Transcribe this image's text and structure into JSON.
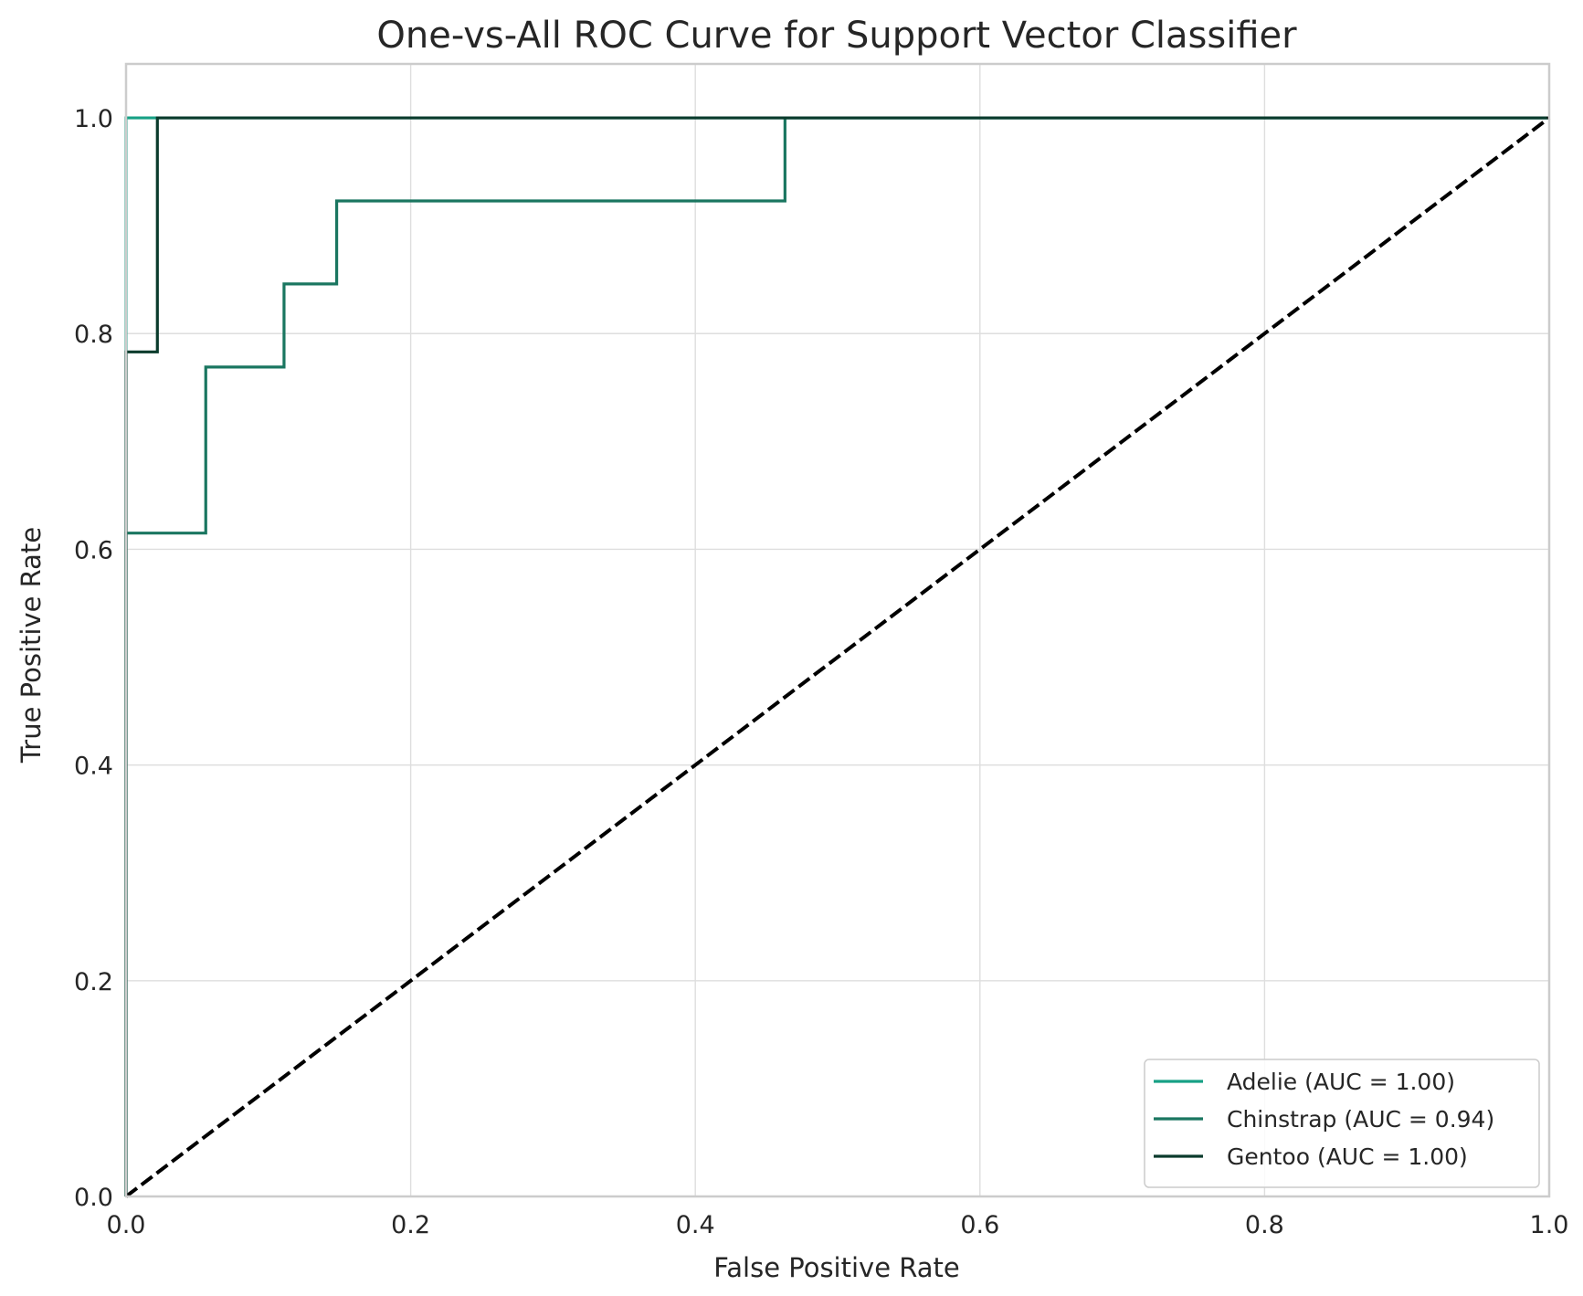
{
  "chart_data": {
    "type": "line",
    "title": "One-vs-All ROC Curve for Support Vector Classifier",
    "xlabel": "False Positive Rate",
    "ylabel": "True Positive Rate",
    "xlim": [
      0.0,
      1.0
    ],
    "ylim": [
      0.0,
      1.05
    ],
    "xticks": [
      "0.0",
      "0.2",
      "0.4",
      "0.6",
      "0.8",
      "1.0"
    ],
    "yticks": [
      "0.0",
      "0.2",
      "0.4",
      "0.6",
      "0.8",
      "1.0"
    ],
    "grid": true,
    "legend_position": "lower-right",
    "series": [
      {
        "name": "Adelie (AUC = 1.00)",
        "color": "#17a085",
        "x": [
          0.0,
          0.0,
          1.0
        ],
        "y": [
          0.0,
          1.0,
          1.0
        ]
      },
      {
        "name": "Chinstrap (AUC = 0.94)",
        "color": "#1a7660",
        "x": [
          0.0,
          0.0,
          0.056,
          0.056,
          0.111,
          0.111,
          0.148,
          0.148,
          0.463,
          0.463,
          1.0
        ],
        "y": [
          0.0,
          0.615,
          0.615,
          0.769,
          0.769,
          0.846,
          0.846,
          0.923,
          0.923,
          1.0,
          1.0
        ]
      },
      {
        "name": "Gentoo (AUC = 1.00)",
        "color": "#0a3b2c",
        "x": [
          0.0,
          0.0,
          0.022,
          0.022,
          1.0
        ],
        "y": [
          0.0,
          0.783,
          0.783,
          1.0,
          1.0
        ]
      }
    ],
    "reference_line": {
      "style": "dashed",
      "color": "#000000",
      "x": [
        0.0,
        1.0
      ],
      "y": [
        0.0,
        1.0
      ]
    }
  }
}
